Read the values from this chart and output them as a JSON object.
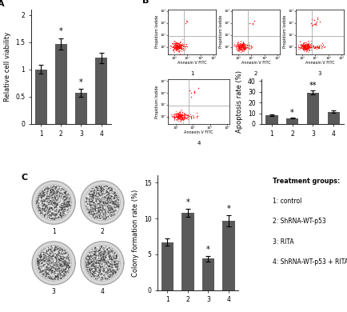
{
  "panel_A": {
    "bar_values": [
      1.0,
      1.47,
      0.57,
      1.21
    ],
    "bar_errors": [
      0.08,
      0.1,
      0.07,
      0.09
    ],
    "bar_color": "#5a5a5a",
    "ylabel": "Relative cell viability",
    "xticks": [
      "1",
      "2",
      "3",
      "4"
    ],
    "ylim": [
      0,
      2.1
    ],
    "yticks": [
      0.0,
      0.5,
      1.0,
      1.5,
      2.0
    ],
    "significance": {
      "1": "",
      "2": "*",
      "3": "*",
      "4": ""
    }
  },
  "panel_B_bar": {
    "bar_values": [
      8.5,
      5.5,
      29.5,
      11.5
    ],
    "bar_errors": [
      0.8,
      0.5,
      2.0,
      1.2
    ],
    "bar_color": "#5a5a5a",
    "ylabel": "Apoptosis rate (%)",
    "xticks": [
      "1",
      "2",
      "3",
      "4"
    ],
    "ylim": [
      0,
      42
    ],
    "yticks": [
      0,
      10,
      20,
      30,
      40
    ],
    "significance": {
      "2": "*",
      "3": "**"
    }
  },
  "panel_C_bar": {
    "bar_values": [
      6.7,
      10.8,
      4.4,
      9.7
    ],
    "bar_errors": [
      0.5,
      0.6,
      0.4,
      0.8
    ],
    "bar_color": "#5a5a5a",
    "ylabel": "Colony formation rate (%)",
    "xticks": [
      "1",
      "2",
      "3",
      "4"
    ],
    "ylim": [
      0,
      16
    ],
    "yticks": [
      0,
      5,
      10,
      15
    ],
    "significance": {
      "2": "*",
      "3": "*",
      "4": "*"
    }
  },
  "legend_text": [
    "Treatment groups:",
    "1: control",
    "2: ShRNA-WT-p53",
    "3: RITA",
    "4: ShRNA-WT-p53 + RITA"
  ],
  "background_color": "#ffffff",
  "tick_fontsize": 5.5,
  "label_fontsize": 6.0,
  "panel_label_fontsize": 8,
  "star_fontsize": 7,
  "legend_fontsize": 5.5
}
